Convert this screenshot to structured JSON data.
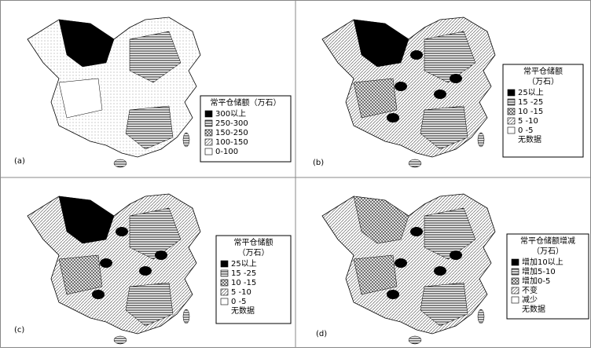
{
  "panels": [
    {
      "label": "(a)",
      "legend": {
        "title": "常平仓储额（万石）",
        "items": [
          "300以上",
          "250-300",
          "150-250",
          "100-150",
          "0-100"
        ]
      }
    },
    {
      "label": "(b)",
      "legend": {
        "title": "常平仓储额",
        "unit": "（万石）",
        "items": [
          "25以上",
          "15 -25",
          "10 -15",
          "5 -10",
          "0 -5",
          "无数据"
        ]
      }
    },
    {
      "label": "(c)",
      "legend": {
        "title": "常平仓储额",
        "unit": "（万石）",
        "items": [
          "25以上",
          "15 -25",
          "10 -15",
          "5 -10",
          "0 -5",
          "无数据"
        ]
      }
    },
    {
      "label": "(d)",
      "legend": {
        "title": "常平仓储额增减",
        "unit": "（万石）",
        "items": [
          "增加10以上",
          "增加5-10",
          "增加0-5",
          "不变",
          "减少",
          "无数据"
        ]
      }
    }
  ]
}
